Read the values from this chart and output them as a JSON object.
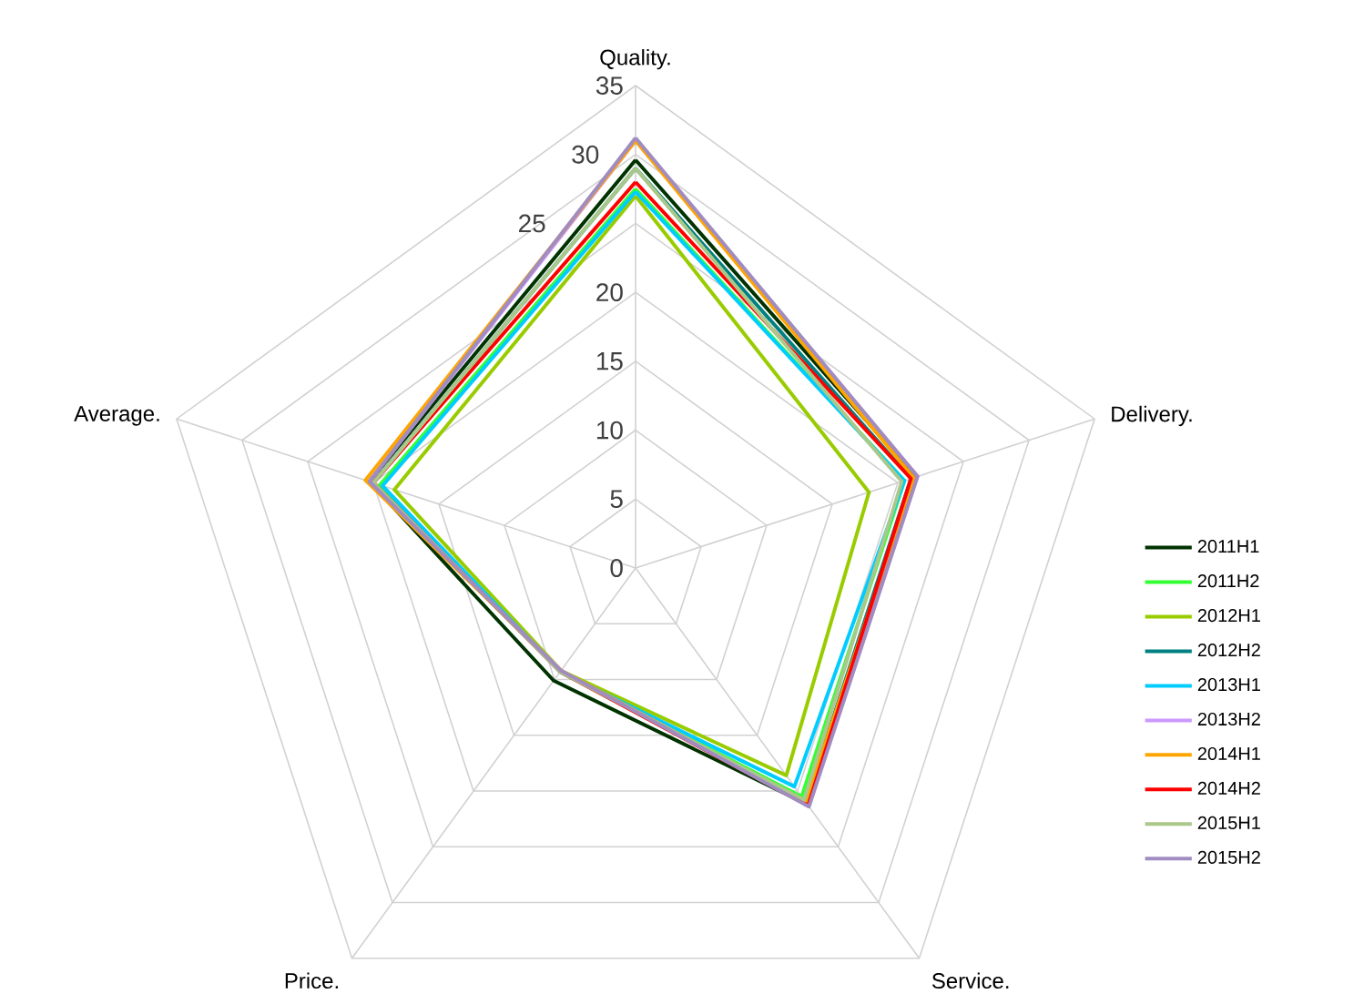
{
  "chart_data": {
    "type": "radar",
    "categories": [
      "Quality.",
      "Delivery.",
      "Service.",
      "Price.",
      "Average."
    ],
    "ylim": [
      0,
      35
    ],
    "yticks": [
      0,
      5,
      10,
      15,
      20,
      25,
      30,
      35
    ],
    "grid": true,
    "legend": "right",
    "marker": "none",
    "line_style": "solid",
    "series": [
      {
        "name": "2011H1",
        "color": "#003300",
        "values": [
          29.6,
          21.4,
          21.2,
          10.1,
          20.3
        ]
      },
      {
        "name": "2011H2",
        "color": "#33ff33",
        "values": [
          27.5,
          20.5,
          20.5,
          9.3,
          19.5
        ]
      },
      {
        "name": "2012H1",
        "color": "#99cc00",
        "values": [
          27,
          17.8,
          18.6,
          9.2,
          18.4
        ]
      },
      {
        "name": "2012H2",
        "color": "#008080",
        "values": [
          29,
          21,
          21,
          9.3,
          20
        ]
      },
      {
        "name": "2013H1",
        "color": "#00ccff",
        "values": [
          27.3,
          20.5,
          19.6,
          9.3,
          19.3
        ]
      },
      {
        "name": "2013H2",
        "color": "#cc99ff",
        "values": [
          31,
          21.5,
          21.3,
          9.2,
          20.3
        ]
      },
      {
        "name": "2014H1",
        "color": "#ffa500",
        "values": [
          31,
          21.2,
          21,
          9.2,
          20.6
        ]
      },
      {
        "name": "2014H2",
        "color": "#ff0000",
        "values": [
          28,
          21,
          21.3,
          9.3,
          20
        ]
      },
      {
        "name": "2015H1",
        "color": "#aac88a",
        "values": [
          29,
          20.3,
          20.8,
          9.3,
          20
        ]
      },
      {
        "name": "2015H2",
        "color": "#a08cc0",
        "values": [
          31.2,
          21.5,
          21.4,
          9.2,
          20.3
        ]
      }
    ]
  }
}
